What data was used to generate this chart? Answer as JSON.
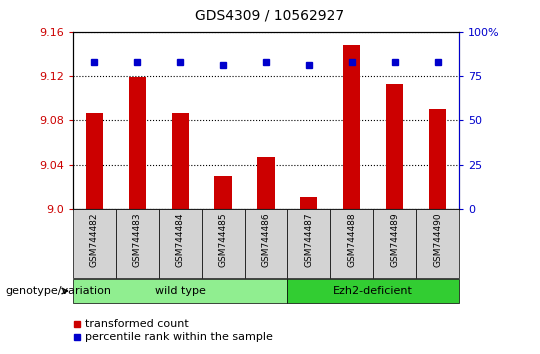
{
  "title": "GDS4309 / 10562927",
  "samples": [
    "GSM744482",
    "GSM744483",
    "GSM744484",
    "GSM744485",
    "GSM744486",
    "GSM744487",
    "GSM744488",
    "GSM744489",
    "GSM744490"
  ],
  "transformed_count": [
    9.087,
    9.119,
    9.087,
    9.03,
    9.047,
    9.011,
    9.148,
    9.113,
    9.09
  ],
  "percentile_rank": [
    83,
    83,
    83,
    81,
    83,
    81,
    83,
    83,
    83
  ],
  "ylim_left": [
    9.0,
    9.16
  ],
  "ylim_right": [
    0,
    100
  ],
  "yticks_left": [
    9.0,
    9.04,
    9.08,
    9.12,
    9.16
  ],
  "yticks_right": [
    0,
    25,
    50,
    75,
    100
  ],
  "bar_color": "#cc0000",
  "dot_color": "#0000cc",
  "grid_color": "#000000",
  "group1_label": "wild type",
  "group2_label": "Ezh2-deficient",
  "group1_indices": [
    0,
    1,
    2,
    3,
    4
  ],
  "group2_indices": [
    5,
    6,
    7,
    8
  ],
  "group1_color": "#90ee90",
  "group2_color": "#32cd32",
  "xlabel_genotype": "genotype/variation",
  "legend_bar_label": "transformed count",
  "legend_dot_label": "percentile rank within the sample",
  "tick_color_left": "#cc0000",
  "tick_color_right": "#0000cc",
  "background_xticklabels": "#d3d3d3",
  "bar_width": 0.4
}
